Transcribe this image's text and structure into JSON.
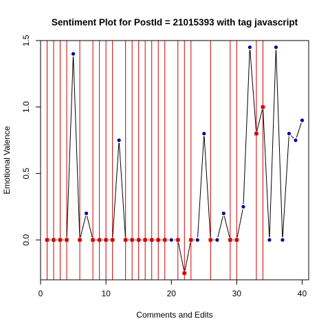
{
  "chart_data": {
    "type": "line",
    "title": "Sentiment Plot for PostId =  21015393  with tag  javascript",
    "xlabel": "Comments and Edits",
    "ylabel": "Emotional Valence",
    "xlim": [
      0,
      41
    ],
    "ylim": [
      -0.3,
      1.5
    ],
    "x_ticks": [
      0,
      10,
      20,
      30,
      40
    ],
    "y_ticks": [
      0.0,
      0.5,
      1.0,
      1.5
    ],
    "x_tick_labels": [
      "0",
      "10",
      "20",
      "30",
      "40"
    ],
    "y_tick_labels": [
      "0.0",
      "0.5",
      "1.0",
      "1.5"
    ],
    "grid": false,
    "vertical_lines_at": [
      1,
      2,
      3,
      4,
      6,
      8,
      9,
      10,
      11,
      13,
      14,
      15,
      16,
      17,
      18,
      19,
      21,
      22,
      23,
      26,
      29,
      30,
      33,
      34
    ],
    "vertical_line_color": "#cc0000",
    "line_color": "#000000",
    "edit_marker_color": "#cc0000",
    "comment_marker_color": "#000099",
    "series": [
      {
        "x": [
          1,
          2,
          3,
          4,
          5,
          6,
          7,
          8,
          9,
          10,
          11,
          12,
          13,
          14,
          15,
          16,
          17,
          18,
          19,
          20,
          21,
          22,
          23,
          24,
          25,
          26,
          27,
          28,
          29,
          30,
          31,
          32,
          33,
          34,
          35,
          36,
          37,
          38,
          39,
          40
        ],
        "values": [
          0,
          0,
          0,
          0,
          1.4,
          0,
          0.2,
          0,
          0,
          0,
          0,
          0.75,
          0,
          0,
          0,
          0,
          0,
          0,
          0,
          0,
          0,
          -0.25,
          0,
          0,
          0.8,
          0,
          0,
          0.2,
          0,
          0,
          0.25,
          1.45,
          0.8,
          1.0,
          0,
          1.45,
          0,
          0.8,
          0.75,
          0.9
        ],
        "marker": [
          "edit",
          "edit",
          "edit",
          "edit",
          "comment",
          "edit",
          "comment",
          "edit",
          "edit",
          "edit",
          "edit",
          "comment",
          "edit",
          "edit",
          "edit",
          "edit",
          "edit",
          "edit",
          "edit",
          "comment",
          "edit",
          "edit",
          "edit",
          "comment",
          "comment",
          "edit",
          "comment",
          "comment",
          "edit",
          "edit",
          "comment",
          "comment",
          "edit",
          "edit",
          "comment",
          "comment",
          "comment",
          "comment",
          "comment",
          "comment"
        ]
      }
    ]
  }
}
